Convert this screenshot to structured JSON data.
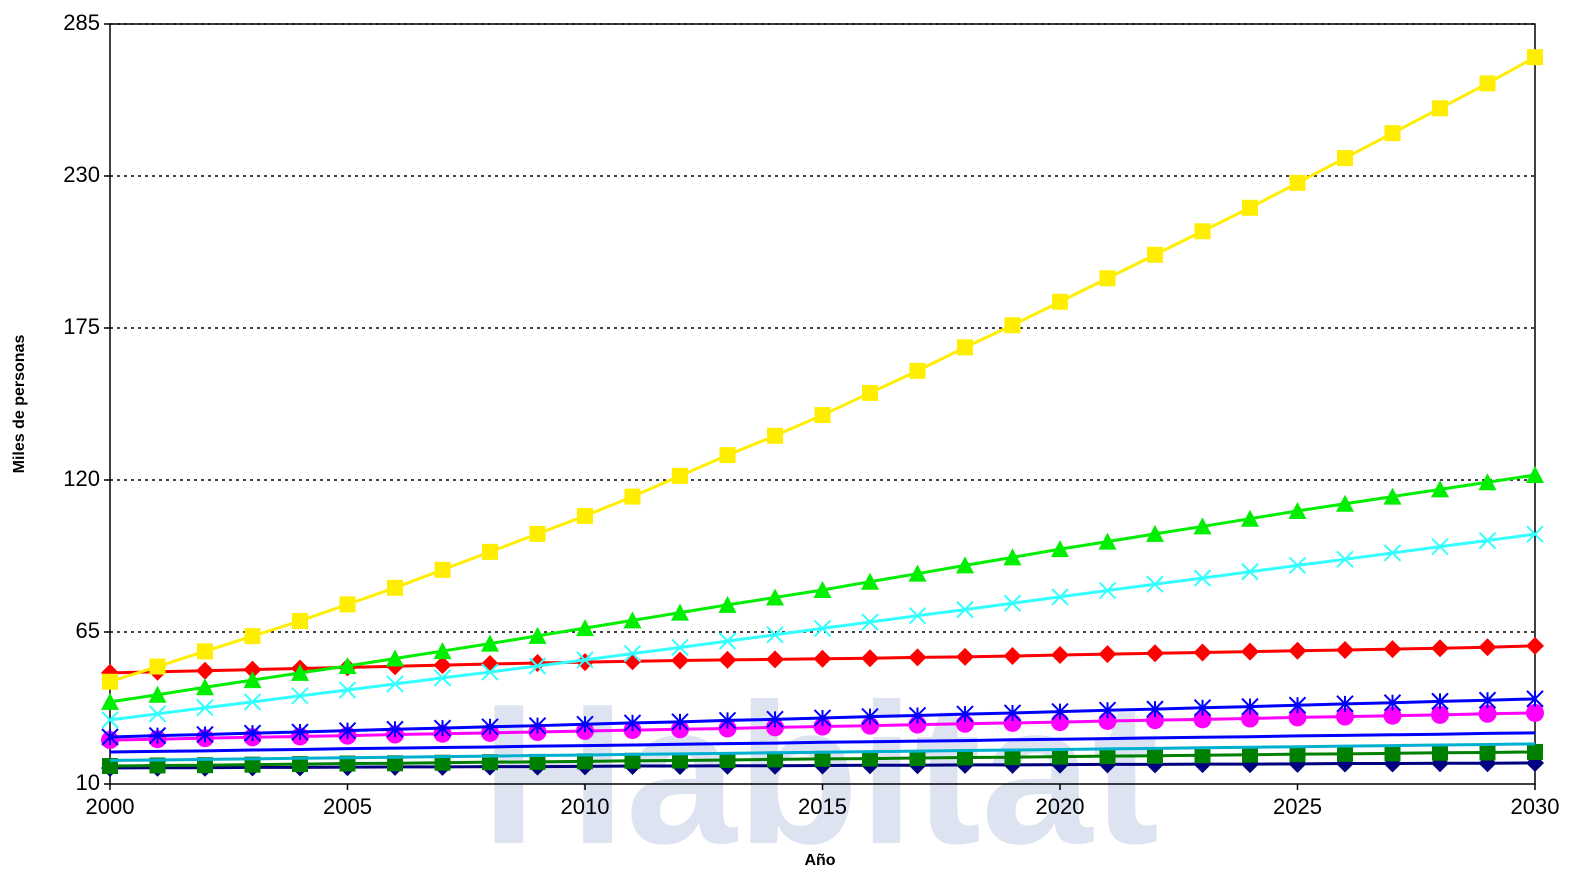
{
  "chart_data": {
    "type": "line",
    "watermark": "Habitat",
    "x_label": "Año",
    "y_label": "Miles de personas",
    "x": [
      2000,
      2001,
      2002,
      2003,
      2004,
      2005,
      2006,
      2007,
      2008,
      2009,
      2010,
      2011,
      2012,
      2013,
      2014,
      2015,
      2016,
      2017,
      2018,
      2019,
      2020,
      2021,
      2022,
      2023,
      2024,
      2025,
      2026,
      2027,
      2028,
      2029,
      2030
    ],
    "xlim": [
      2000,
      2030
    ],
    "xticks": [
      2000,
      2005,
      2010,
      2015,
      2020,
      2025,
      2030
    ],
    "ylim": [
      10,
      285
    ],
    "yticks": [
      10,
      65,
      120,
      175,
      230,
      285
    ],
    "grid": true,
    "series": [
      {
        "color": "#000080",
        "marker": "diamond",
        "values": [
          15.8,
          15.9,
          15.9,
          16,
          16,
          16.1,
          16.2,
          16.2,
          16.3,
          16.3,
          16.4,
          16.5,
          16.5,
          16.6,
          16.6,
          16.7,
          16.8,
          16.8,
          16.9,
          16.9,
          17,
          17.1,
          17.1,
          17.2,
          17.2,
          17.3,
          17.4,
          17.4,
          17.5,
          17.5,
          17.6
        ]
      },
      {
        "color": "#008000",
        "marker": "square",
        "values": [
          16.5,
          16.7,
          16.8,
          17,
          17.2,
          17.4,
          17.5,
          17.7,
          17.9,
          18,
          18.2,
          18.4,
          18.5,
          18.7,
          18.9,
          19.1,
          19.2,
          19.4,
          19.6,
          19.7,
          19.9,
          20.1,
          20.2,
          20.4,
          20.6,
          20.8,
          20.9,
          21.1,
          21.3,
          21.4,
          21.6
        ]
      },
      {
        "color": "#00b0d0",
        "marker": "none",
        "values": [
          18.5,
          18.7,
          18.9,
          19.1,
          19.3,
          19.5,
          19.7,
          19.9,
          20.1,
          20.3,
          20.5,
          20.7,
          20.9,
          21.1,
          21.3,
          21.5,
          21.7,
          21.9,
          22.1,
          22.3,
          22.5,
          22.7,
          22.9,
          23.1,
          23.3,
          23.5,
          23.7,
          23.9,
          24.1,
          24.3,
          24.5
        ]
      },
      {
        "color": "#0000ff",
        "marker": "none",
        "values": [
          21.6,
          21.8,
          22,
          22.3,
          22.5,
          22.8,
          23,
          23.2,
          23.4,
          23.7,
          23.9,
          24.1,
          24.4,
          24.6,
          24.8,
          25.1,
          25.3,
          25.5,
          25.7,
          26,
          26.2,
          26.4,
          26.7,
          26.9,
          27.1,
          27.4,
          27.6,
          27.8,
          28,
          28.3,
          28.5
        ]
      },
      {
        "color": "#ff00ff",
        "marker": "circle",
        "values": [
          25.9,
          26.2,
          26.6,
          26.9,
          27.2,
          27.5,
          27.9,
          28.2,
          28.5,
          28.8,
          29.2,
          29.5,
          29.8,
          30.1,
          30.5,
          30.8,
          31.1,
          31.5,
          31.8,
          32.1,
          32.4,
          32.8,
          33.1,
          33.4,
          33.7,
          34.1,
          34.4,
          34.7,
          35,
          35.4,
          35.7
        ]
      },
      {
        "color": "#0000ff",
        "marker": "asterisk",
        "values": [
          27,
          27.5,
          27.9,
          28.4,
          28.8,
          29.3,
          29.8,
          30.2,
          30.7,
          31.1,
          31.6,
          32.1,
          32.5,
          33,
          33.4,
          33.9,
          34.4,
          34.8,
          35.3,
          35.7,
          36.2,
          36.7,
          37.1,
          37.6,
          38,
          38.5,
          39,
          39.4,
          39.9,
          40.3,
          40.8
        ]
      },
      {
        "color": "#ff0000",
        "marker": "diamond",
        "values": [
          50.2,
          50.6,
          51,
          51.4,
          51.8,
          52.2,
          52.6,
          53,
          53.4,
          53.8,
          54.1,
          54.4,
          54.7,
          54.9,
          55.1,
          55.3,
          55.5,
          55.8,
          56,
          56.3,
          56.7,
          57,
          57.3,
          57.6,
          57.9,
          58.2,
          58.5,
          58.8,
          59.1,
          59.5,
          60
        ]
      },
      {
        "color": "#33ffff",
        "marker": "x",
        "values": [
          33.2,
          35.4,
          37.6,
          39.7,
          41.9,
          44,
          46.2,
          48.4,
          50.5,
          52.7,
          54.9,
          57.2,
          59.4,
          61.7,
          64,
          66.3,
          68.6,
          70.9,
          73.1,
          75.4,
          77.7,
          80,
          82.3,
          84.5,
          86.8,
          89.1,
          91.3,
          93.6,
          95.9,
          98.1,
          100.4
        ]
      },
      {
        "color": "#00ee00",
        "marker": "triangle",
        "values": [
          39.7,
          42.3,
          45,
          47.6,
          50.2,
          52.7,
          55.4,
          58.1,
          60.8,
          63.6,
          66.4,
          69.2,
          72,
          74.8,
          77.5,
          80.2,
          83.2,
          86.1,
          89.1,
          92,
          95,
          97.7,
          100.5,
          103.2,
          106,
          108.8,
          111.4,
          114,
          116.6,
          119.2,
          121.8
        ]
      },
      {
        "color": "#ffee00",
        "marker": "square",
        "values": [
          47,
          52.5,
          58,
          63.5,
          69,
          75,
          81,
          87.5,
          94,
          100.5,
          107,
          114,
          121.5,
          129,
          136,
          143.5,
          151.5,
          159.5,
          168,
          176,
          184.5,
          193,
          201.5,
          210,
          218.5,
          227.5,
          236.5,
          245.5,
          254.5,
          263.5,
          273
        ]
      }
    ]
  }
}
